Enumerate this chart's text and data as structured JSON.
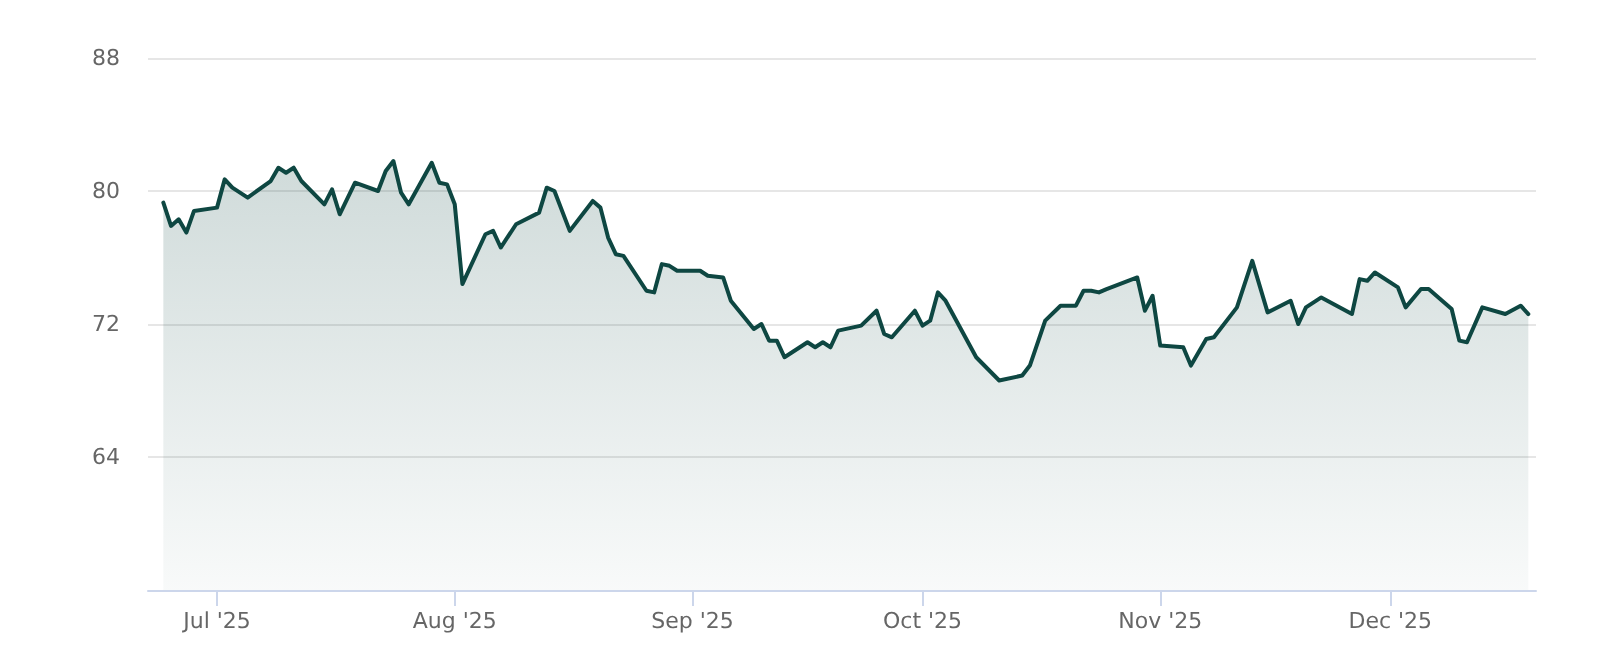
{
  "chart_data": {
    "type": "area",
    "x": [
      "2025-06-24",
      "2025-06-25",
      "2025-06-26",
      "2025-06-27",
      "2025-06-28",
      "2025-07-01",
      "2025-07-02",
      "2025-07-03",
      "2025-07-05",
      "2025-07-08",
      "2025-07-09",
      "2025-07-10",
      "2025-07-11",
      "2025-07-12",
      "2025-07-15",
      "2025-07-16",
      "2025-07-17",
      "2025-07-19",
      "2025-07-22",
      "2025-07-23",
      "2025-07-24",
      "2025-07-25",
      "2025-07-26",
      "2025-07-29",
      "2025-07-30",
      "2025-07-31",
      "2025-08-01",
      "2025-08-02",
      "2025-08-05",
      "2025-08-06",
      "2025-08-07",
      "2025-08-09",
      "2025-08-12",
      "2025-08-13",
      "2025-08-14",
      "2025-08-16",
      "2025-08-19",
      "2025-08-20",
      "2025-08-21",
      "2025-08-22",
      "2025-08-23",
      "2025-08-26",
      "2025-08-27",
      "2025-08-28",
      "2025-08-29",
      "2025-08-30",
      "2025-09-02",
      "2025-09-03",
      "2025-09-05",
      "2025-09-06",
      "2025-09-09",
      "2025-09-10",
      "2025-09-11",
      "2025-09-12",
      "2025-09-13",
      "2025-09-16",
      "2025-09-17",
      "2025-09-18",
      "2025-09-19",
      "2025-09-20",
      "2025-09-23",
      "2025-09-25",
      "2025-09-26",
      "2025-09-27",
      "2025-09-30",
      "2025-10-01",
      "2025-10-02",
      "2025-10-03",
      "2025-10-04",
      "2025-10-08",
      "2025-10-11",
      "2025-10-14",
      "2025-10-15",
      "2025-10-17",
      "2025-10-19",
      "2025-10-21",
      "2025-10-22",
      "2025-10-23",
      "2025-10-24",
      "2025-10-25",
      "2025-10-29",
      "2025-10-30",
      "2025-10-31",
      "2025-11-01",
      "2025-11-04",
      "2025-11-05",
      "2025-11-07",
      "2025-11-08",
      "2025-11-11",
      "2025-11-13",
      "2025-11-15",
      "2025-11-18",
      "2025-11-19",
      "2025-11-20",
      "2025-11-22",
      "2025-11-26",
      "2025-11-27",
      "2025-11-28",
      "2025-11-29",
      "2025-12-02",
      "2025-12-03",
      "2025-12-05",
      "2025-12-06",
      "2025-12-09",
      "2025-12-10",
      "2025-12-11",
      "2025-12-13",
      "2025-12-16",
      "2025-12-18",
      "2025-12-19"
    ],
    "series": [
      {
        "color": "#0e4742",
        "values": [
          79.3,
          77.9,
          78.3,
          77.5,
          78.8,
          79.0,
          80.7,
          80.2,
          79.6,
          80.6,
          81.4,
          81.1,
          81.4,
          80.6,
          79.2,
          80.1,
          78.6,
          80.5,
          80.0,
          81.2,
          81.8,
          79.9,
          79.2,
          81.7,
          80.5,
          80.4,
          79.2,
          74.4,
          77.4,
          77.6,
          76.6,
          78.0,
          78.7,
          80.2,
          80.0,
          77.6,
          79.4,
          79.0,
          77.2,
          76.2,
          76.1,
          74.0,
          73.9,
          75.6,
          75.5,
          75.2,
          75.2,
          74.9,
          74.8,
          73.4,
          71.7,
          72.0,
          71.0,
          71.0,
          70.0,
          70.9,
          70.6,
          70.9,
          70.6,
          71.6,
          71.9,
          72.8,
          71.4,
          71.2,
          72.8,
          71.9,
          72.2,
          73.9,
          73.4,
          70.0,
          68.6,
          68.9,
          69.5,
          72.2,
          73.1,
          73.1,
          74.0,
          74.0,
          73.9,
          74.1,
          74.8,
          72.8,
          73.7,
          70.7,
          70.6,
          69.5,
          71.1,
          71.2,
          73.0,
          75.8,
          72.7,
          73.4,
          72.0,
          73.0,
          73.6,
          72.6,
          74.7,
          74.6,
          75.1,
          74.2,
          73.0,
          74.1,
          74.1,
          72.9,
          71.0,
          70.9,
          73.0,
          72.6,
          73.1,
          72.6
        ]
      }
    ],
    "xlim": [
      "2025-06-22",
      "2025-12-20"
    ],
    "xticks": [
      {
        "value": "2025-07-01",
        "label": "Jul '25"
      },
      {
        "value": "2025-08-01",
        "label": "Aug '25"
      },
      {
        "value": "2025-09-01",
        "label": "Sep '25"
      },
      {
        "value": "2025-10-01",
        "label": "Oct '25"
      },
      {
        "value": "2025-11-01",
        "label": "Nov '25"
      },
      {
        "value": "2025-12-01",
        "label": "Dec '25"
      }
    ],
    "ylim": [
      56,
      88
    ],
    "yticks": [
      64,
      72,
      80,
      88
    ],
    "grid": "y",
    "marker": "none",
    "line_style": "solid"
  }
}
